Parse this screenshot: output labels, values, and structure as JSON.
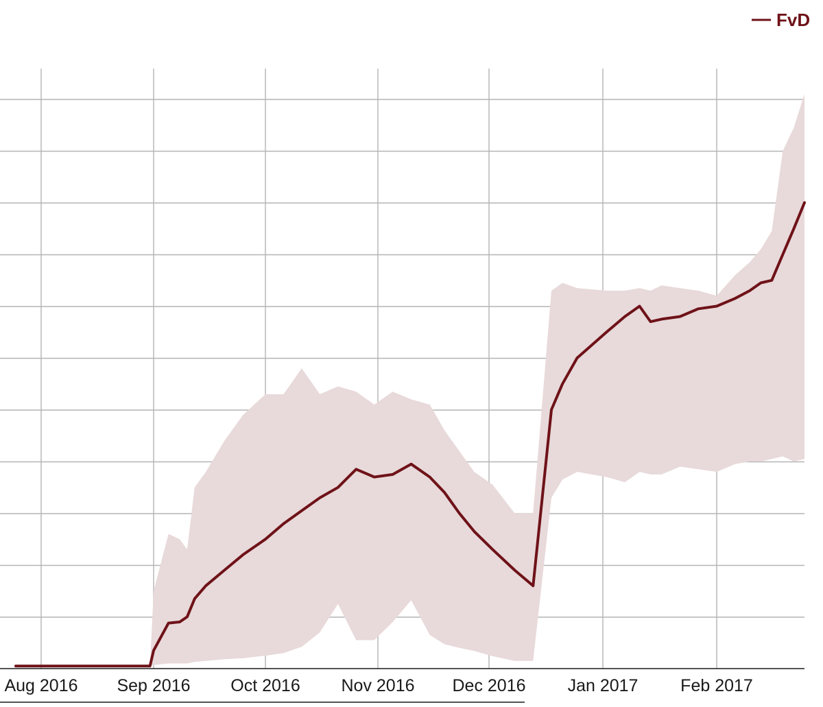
{
  "chart_data": {
    "type": "area",
    "title": "",
    "xlabel": "",
    "ylabel": "",
    "x_tick_labels": [
      "Aug 2016",
      "Sep 2016",
      "Oct 2016",
      "Nov 2016",
      "Dec 2016",
      "Jan 2017",
      "Feb 2017"
    ],
    "y_tick_labels": [],
    "y_gridlines": 12,
    "grid": true,
    "legend_position": "top-right",
    "colors": {
      "line": "#6e1218",
      "band": "#e8d9da",
      "grid": "#b4b4b4",
      "axis": "#1a1a1a"
    },
    "series": [
      {
        "name": "FvD",
        "x": [
          "2016-07-25",
          "2016-08-15",
          "2016-08-31",
          "2016-09-01",
          "2016-09-05",
          "2016-09-08",
          "2016-09-10",
          "2016-09-12",
          "2016-09-15",
          "2016-09-20",
          "2016-09-25",
          "2016-10-01",
          "2016-10-06",
          "2016-10-11",
          "2016-10-16",
          "2016-10-21",
          "2016-10-26",
          "2016-10-31",
          "2016-11-05",
          "2016-11-10",
          "2016-11-15",
          "2016-11-19",
          "2016-11-23",
          "2016-11-27",
          "2016-12-02",
          "2016-12-08",
          "2016-12-13",
          "2016-12-18",
          "2016-12-21",
          "2016-12-25",
          "2017-01-02",
          "2017-01-07",
          "2017-01-11",
          "2017-01-14",
          "2017-01-17",
          "2017-01-22",
          "2017-01-27",
          "2017-02-01",
          "2017-02-06",
          "2017-02-10",
          "2017-02-13",
          "2017-02-16",
          "2017-02-19",
          "2017-02-22",
          "2017-02-25",
          "2017-02-28"
        ],
        "values": [
          0.05,
          0.05,
          0.05,
          0.35,
          0.88,
          0.9,
          1.0,
          1.35,
          1.6,
          1.9,
          2.2,
          2.5,
          2.8,
          3.05,
          3.3,
          3.5,
          3.85,
          3.7,
          3.75,
          3.95,
          3.7,
          3.4,
          3.0,
          2.65,
          2.3,
          1.9,
          1.6,
          5.0,
          5.5,
          6.0,
          6.5,
          6.8,
          7.0,
          6.7,
          6.75,
          6.8,
          6.95,
          7.0,
          7.15,
          7.3,
          7.45,
          7.5,
          8.0,
          8.5,
          9.0,
          9.0
        ],
        "band_upper": [
          0.05,
          0.05,
          0.05,
          1.5,
          2.6,
          2.5,
          2.3,
          3.5,
          3.8,
          4.4,
          4.9,
          5.3,
          5.3,
          5.8,
          5.3,
          5.45,
          5.35,
          5.1,
          5.35,
          5.2,
          5.1,
          4.6,
          4.2,
          3.8,
          3.55,
          3.0,
          3.0,
          7.3,
          7.45,
          7.35,
          7.3,
          7.3,
          7.35,
          7.3,
          7.4,
          7.35,
          7.3,
          7.2,
          7.6,
          7.85,
          8.1,
          8.45,
          10.0,
          10.45,
          11.1,
          11.0
        ],
        "band_lower": [
          0.05,
          0.05,
          0.05,
          0.07,
          0.1,
          0.1,
          0.1,
          0.13,
          0.15,
          0.18,
          0.2,
          0.25,
          0.3,
          0.42,
          0.7,
          1.25,
          0.55,
          0.55,
          0.9,
          1.32,
          0.65,
          0.47,
          0.4,
          0.34,
          0.24,
          0.15,
          0.15,
          3.3,
          3.65,
          3.8,
          3.7,
          3.6,
          3.8,
          3.75,
          3.75,
          3.9,
          3.85,
          3.8,
          3.95,
          4.0,
          4.0,
          4.05,
          4.1,
          4.0,
          4.05,
          4.0
        ],
        "band_note": "shaded uncertainty band"
      }
    ]
  }
}
